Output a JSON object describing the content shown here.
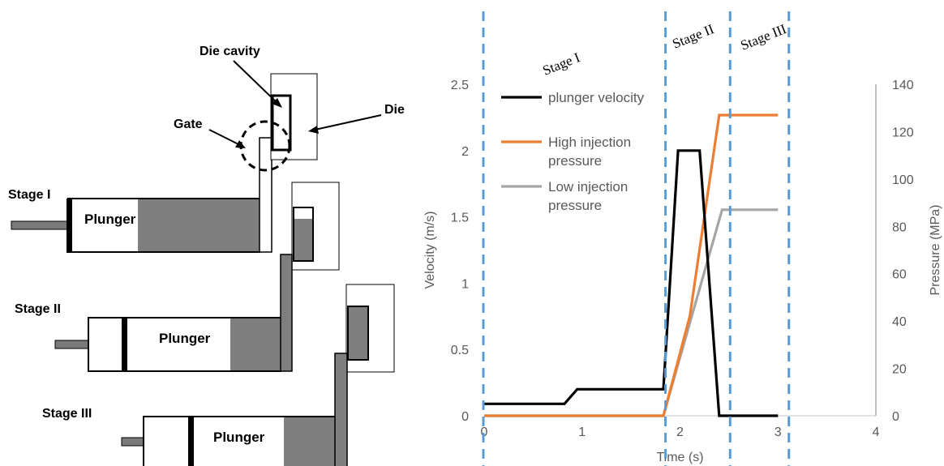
{
  "diagram": {
    "labels": {
      "die_cavity": "Die cavity",
      "gate": "Gate",
      "die": "Die",
      "stage1": "Stage I",
      "stage2": "Stage II",
      "stage3": "Stage III",
      "plunger": "Plunger"
    }
  },
  "chart_data": {
    "type": "line",
    "x": [
      0,
      0.8,
      0.9,
      1.0,
      1.85,
      1.95,
      2.0,
      2.2,
      2.25,
      2.4,
      2.43,
      3.0
    ],
    "xlabel": "Time (s)",
    "ylabel": "Velocity (m/s)",
    "y2label": "Pressure (MPa)",
    "xlim": [
      0,
      4
    ],
    "ylim": [
      0,
      2.5
    ],
    "y2lim": [
      0,
      140
    ],
    "xticks": [
      "0",
      "1",
      "2",
      "3",
      "4"
    ],
    "yticks": [
      "0",
      "0.5",
      "1",
      "1.5",
      "2",
      "2.5"
    ],
    "y2ticks": [
      "0",
      "20",
      "40",
      "60",
      "80",
      "100",
      "120",
      "140"
    ],
    "stage_labels": [
      "Stage I",
      "Stage II",
      "Stage III"
    ],
    "stage_boundaries": [
      0,
      1.86,
      2.52,
      3.12
    ],
    "series": [
      {
        "name": "plunger velocity",
        "axis": "left",
        "color": "#000000",
        "points": [
          [
            0,
            0.09
          ],
          [
            0.82,
            0.09
          ],
          [
            0.95,
            0.2
          ],
          [
            1.83,
            0.2
          ],
          [
            1.98,
            2.0
          ],
          [
            2.2,
            2.0
          ],
          [
            2.4,
            0.0
          ],
          [
            3.0,
            0.0
          ]
        ]
      },
      {
        "name": "High injection\npressure",
        "legend_lines": [
          "High injection",
          "pressure"
        ],
        "axis": "right",
        "color": "#ED7D31",
        "points": [
          [
            0,
            0
          ],
          [
            1.83,
            0
          ],
          [
            2.1,
            42
          ],
          [
            2.4,
            127
          ],
          [
            3.0,
            127
          ]
        ]
      },
      {
        "name": "Low injection\npressure",
        "legend_lines": [
          "Low injection",
          "pressure"
        ],
        "axis": "right",
        "color": "#A5A5A5",
        "points": [
          [
            0,
            0
          ],
          [
            1.83,
            0
          ],
          [
            2.43,
            87
          ],
          [
            3.0,
            87
          ]
        ]
      }
    ]
  }
}
